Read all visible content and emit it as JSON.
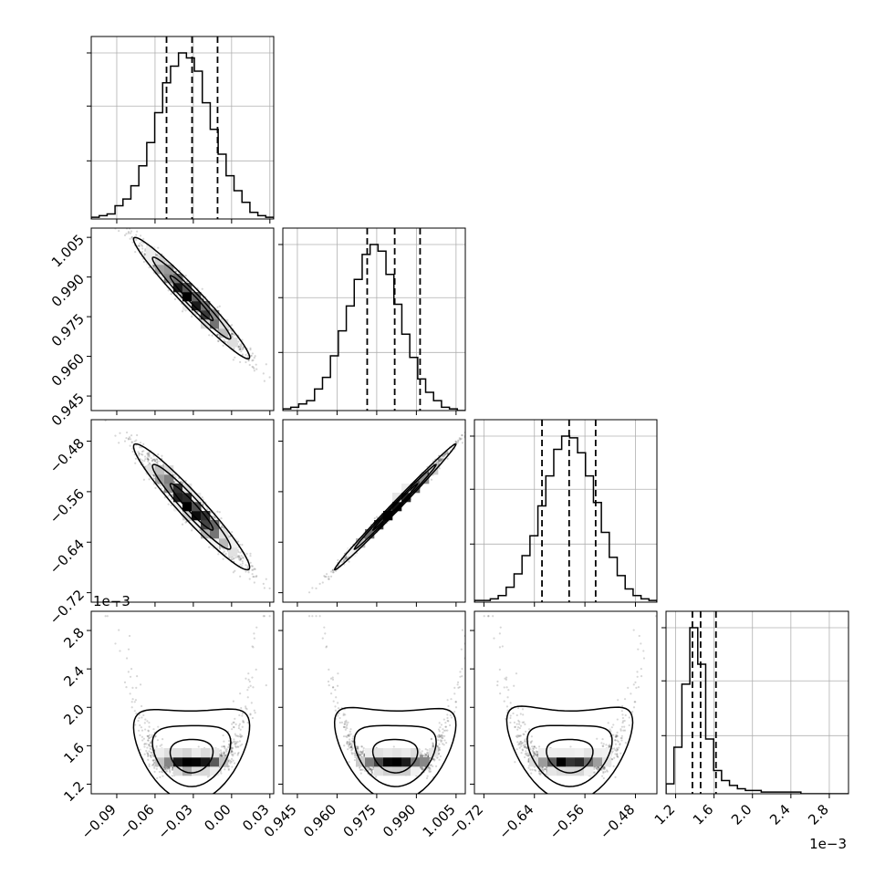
{
  "chart_data": {
    "type": "corner",
    "parameters": [
      {
        "index": 0,
        "range": [
          -0.11,
          0.033
        ],
        "ticks": [
          -0.09,
          -0.06,
          -0.03,
          0.0,
          0.03
        ],
        "tick_labels": [
          "−0.09",
          "−0.06",
          "−0.03",
          "0.00",
          "0.03"
        ],
        "quantiles": [
          -0.051,
          -0.031,
          -0.011
        ]
      },
      {
        "index": 1,
        "range": [
          0.9395,
          1.0085
        ],
        "ticks": [
          0.945,
          0.96,
          0.975,
          0.99,
          1.005
        ],
        "tick_labels": [
          "0.945",
          "0.960",
          "0.975",
          "0.990",
          "1.005"
        ],
        "quantiles": [
          0.9714,
          0.9818,
          0.9914
        ]
      },
      {
        "index": 2,
        "range": [
          -0.735,
          -0.446
        ],
        "ticks": [
          -0.72,
          -0.64,
          -0.56,
          -0.48
        ],
        "tick_labels": [
          "−0.72",
          "−0.64",
          "−0.56",
          "−0.48"
        ],
        "quantiles": [
          -0.628,
          -0.585,
          -0.543
        ]
      },
      {
        "index": 3,
        "range": [
          1.1,
          3.0
        ],
        "ticks": [
          1.2,
          1.6,
          2.0,
          2.4,
          2.8
        ],
        "tick_labels": [
          "1.2",
          "1.6",
          "2.0",
          "2.4",
          "2.8"
        ],
        "quantiles": [
          1.375,
          1.46,
          1.62
        ],
        "scale_label": "1e−3"
      }
    ],
    "histograms": [
      [
        1,
        2,
        3,
        8,
        12,
        20,
        32,
        46,
        64,
        82,
        92,
        100,
        97,
        89,
        70,
        54,
        39,
        26,
        17,
        10,
        4,
        2,
        1
      ],
      [
        1,
        2,
        4,
        6,
        13,
        20,
        33,
        48,
        63,
        79,
        94,
        100,
        96,
        82,
        64,
        46,
        32,
        19,
        11,
        6,
        2,
        1,
        0
      ],
      [
        1,
        1,
        2,
        4,
        9,
        17,
        28,
        40,
        58,
        76,
        92,
        100,
        99,
        90,
        76,
        60,
        42,
        27,
        16,
        8,
        4,
        2,
        1
      ],
      [
        6,
        28,
        66,
        100,
        78,
        33,
        14,
        8,
        5,
        3,
        2,
        2,
        1,
        1,
        1,
        1,
        1,
        0,
        0,
        0,
        0,
        0,
        0
      ]
    ],
    "grid": true
  }
}
